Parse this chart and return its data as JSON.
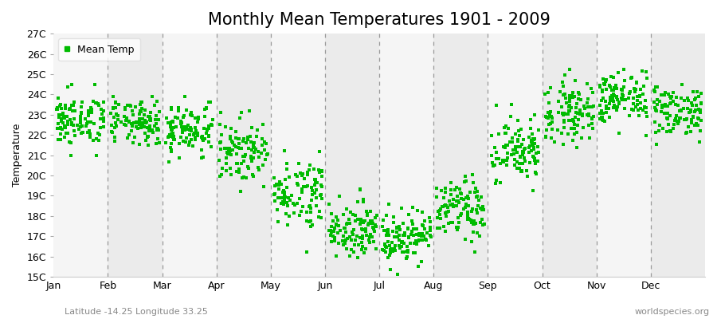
{
  "title": "Monthly Mean Temperatures 1901 - 2009",
  "ylabel": "Temperature",
  "subtitle_left": "Latitude -14.25 Longitude 33.25",
  "subtitle_right": "worldspecies.org",
  "months": [
    "Jan",
    "Feb",
    "Mar",
    "Apr",
    "May",
    "Jun",
    "Jul",
    "Aug",
    "Sep",
    "Oct",
    "Nov",
    "Dec"
  ],
  "monthly_means": [
    22.7,
    22.6,
    22.3,
    21.2,
    19.2,
    17.4,
    17.0,
    18.3,
    21.2,
    23.2,
    23.8,
    23.2
  ],
  "monthly_stds": [
    0.65,
    0.55,
    0.65,
    0.75,
    0.85,
    0.65,
    0.65,
    0.75,
    0.85,
    0.75,
    0.65,
    0.65
  ],
  "years": 109,
  "ylim": [
    15,
    27
  ],
  "yticks": [
    15,
    16,
    17,
    18,
    19,
    20,
    21,
    22,
    23,
    24,
    25,
    26,
    27
  ],
  "ytick_labels": [
    "15C",
    "16C",
    "17C",
    "18C",
    "19C",
    "20C",
    "21C",
    "22C",
    "23C",
    "24C",
    "25C",
    "26C",
    "27C"
  ],
  "marker_color": "#00bb00",
  "marker": "s",
  "marker_size": 7,
  "legend_label": "Mean Temp",
  "bg_color": "#ffffff",
  "band_color_odd": "#ebebeb",
  "band_color_even": "#f5f5f5",
  "dashed_line_color": "#999999",
  "title_fontsize": 15,
  "axis_fontsize": 9,
  "tick_fontsize": 9,
  "subtitle_fontsize": 8
}
